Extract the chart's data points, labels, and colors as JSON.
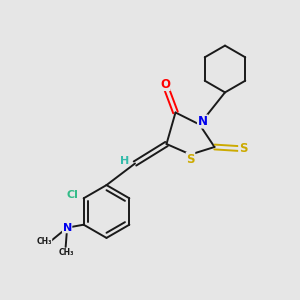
{
  "background_color": "#e6e6e6",
  "bond_color": "#1a1a1a",
  "atom_colors": {
    "O": "#ff0000",
    "N": "#0000ee",
    "S": "#ccaa00",
    "Cl": "#33bb88",
    "H": "#33bbaa",
    "C": "#1a1a1a"
  },
  "font_size_atom": 8.5,
  "font_size_small": 7.5,
  "lw": 1.4
}
